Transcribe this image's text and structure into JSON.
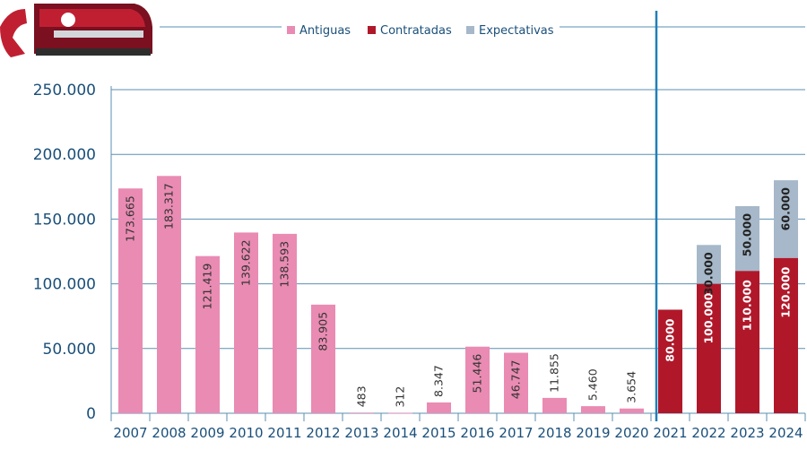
{
  "chart_data": {
    "type": "bar",
    "stacked": true,
    "categories": [
      "2007",
      "2008",
      "2009",
      "2010",
      "2011",
      "2012",
      "2013",
      "2014",
      "2015",
      "2016",
      "2017",
      "2018",
      "2019",
      "2020",
      "2021",
      "2022",
      "2023",
      "2024"
    ],
    "series": [
      {
        "name": "Antiguas",
        "color": "#e98bb3",
        "values": [
          173665,
          183317,
          121419,
          139622,
          138593,
          83905,
          483,
          312,
          8347,
          51446,
          46747,
          11855,
          5460,
          3654,
          0,
          0,
          0,
          0
        ],
        "labels": [
          "173.665",
          "183.317",
          "121.419",
          "139.622",
          "138.593",
          "83.905",
          "483",
          "312",
          "8.347",
          "51.446",
          "46.747",
          "11.855",
          "5.460",
          "3.654",
          "",
          "",
          "",
          ""
        ]
      },
      {
        "name": "Contratadas",
        "color": "#b0182a",
        "values": [
          0,
          0,
          0,
          0,
          0,
          0,
          0,
          0,
          0,
          0,
          0,
          0,
          0,
          0,
          80000,
          100000,
          110000,
          120000
        ],
        "labels": [
          "",
          "",
          "",
          "",
          "",
          "",
          "",
          "",
          "",
          "",
          "",
          "",
          "",
          "",
          "80.000",
          "100.000",
          "110.000",
          "120.000"
        ]
      },
      {
        "name": "Expectativas",
        "color": "#a6b8c9",
        "values": [
          0,
          0,
          0,
          0,
          0,
          0,
          0,
          0,
          0,
          0,
          0,
          0,
          0,
          0,
          0,
          30000,
          50000,
          60000
        ],
        "labels": [
          "",
          "",
          "",
          "",
          "",
          "",
          "",
          "",
          "",
          "",
          "",
          "",
          "",
          "",
          "",
          "30.000",
          "50.000",
          "60.000"
        ]
      }
    ],
    "yticks": [
      "0",
      "50.000",
      "100.000",
      "150.000",
      "200.000",
      "250.000"
    ],
    "ytick_values": [
      0,
      50000,
      100000,
      150000,
      200000,
      250000
    ],
    "ylim": [
      0,
      250000
    ],
    "divider_between": [
      "2020",
      "2021"
    ],
    "grid": true,
    "legend_position": "top-center",
    "grid_color": "#5b8fb0",
    "axis_text_color": "#1a4f7a",
    "divider_color": "#1f7fb8"
  }
}
